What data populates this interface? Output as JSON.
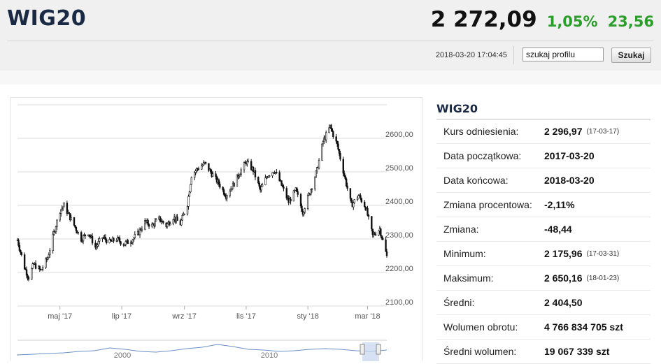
{
  "header": {
    "title": "WIG20",
    "price": "2 272,09",
    "change_pct": "1,05%",
    "change_abs": "23,56",
    "timestamp": "2018-03-20 17:04:45",
    "search_value": "szukaj profilu",
    "search_button": "Szukaj",
    "change_color": "#2a9d2a"
  },
  "info": {
    "title": "WIG20",
    "rows": [
      {
        "label": "Kurs odniesienia:",
        "value": "2 296,97",
        "date": "(17-03-17)"
      },
      {
        "label": "Data początkowa:",
        "value": "2017-03-20",
        "date": ""
      },
      {
        "label": "Data końcowa:",
        "value": "2018-03-20",
        "date": ""
      },
      {
        "label": "Zmiana procentowa:",
        "value": "-2,11%",
        "date": ""
      },
      {
        "label": "Zmiana:",
        "value": "-48,44",
        "date": ""
      },
      {
        "label": "Minimum:",
        "value": "2 175,96",
        "date": "(17-03-31)"
      },
      {
        "label": "Maksimum:",
        "value": "2 650,16",
        "date": "(18-01-23)"
      },
      {
        "label": "Średni:",
        "value": "2 404,50",
        "date": ""
      },
      {
        "label": "Wolumen obrotu:",
        "value": "4 766 834 705 szt",
        "date": ""
      },
      {
        "label": "Średni wolumen:",
        "value": "19 067 339 szt",
        "date": ""
      }
    ]
  },
  "chart_data": {
    "type": "candlestick",
    "x_range": [
      "2017-03-20",
      "2018-03-20"
    ],
    "ylim": [
      2100,
      2700
    ],
    "y_ticks": [
      {
        "value": 2100,
        "label": "2100,00"
      },
      {
        "value": 2200,
        "label": "2200,00"
      },
      {
        "value": 2300,
        "label": "2300,00"
      },
      {
        "value": 2400,
        "label": "2400,00"
      },
      {
        "value": 2500,
        "label": "2500,00"
      },
      {
        "value": 2600,
        "label": "2600,00"
      }
    ],
    "x_ticks": [
      {
        "date": "2017-05-01",
        "label": "maj '17"
      },
      {
        "date": "2017-07-01",
        "label": "lip '17"
      },
      {
        "date": "2017-09-01",
        "label": "wrz '17"
      },
      {
        "date": "2017-11-01",
        "label": "lis '17"
      },
      {
        "date": "2018-01-01",
        "label": "sty '18"
      },
      {
        "date": "2018-03-01",
        "label": "mar '18"
      }
    ],
    "close_series": [
      [
        "2017-03-20",
        2297
      ],
      [
        "2017-03-27",
        2215
      ],
      [
        "2017-03-31",
        2185
      ],
      [
        "2017-04-05",
        2225
      ],
      [
        "2017-04-12",
        2205
      ],
      [
        "2017-04-19",
        2245
      ],
      [
        "2017-04-26",
        2330
      ],
      [
        "2017-05-01",
        2385
      ],
      [
        "2017-05-05",
        2400
      ],
      [
        "2017-05-10",
        2370
      ],
      [
        "2017-05-16",
        2335
      ],
      [
        "2017-05-22",
        2300
      ],
      [
        "2017-05-29",
        2320
      ],
      [
        "2017-06-05",
        2275
      ],
      [
        "2017-06-12",
        2305
      ],
      [
        "2017-06-19",
        2290
      ],
      [
        "2017-06-26",
        2300
      ],
      [
        "2017-07-03",
        2285
      ],
      [
        "2017-07-10",
        2295
      ],
      [
        "2017-07-17",
        2315
      ],
      [
        "2017-07-24",
        2350
      ],
      [
        "2017-07-31",
        2340
      ],
      [
        "2017-08-07",
        2360
      ],
      [
        "2017-08-14",
        2340
      ],
      [
        "2017-08-21",
        2365
      ],
      [
        "2017-08-28",
        2345
      ],
      [
        "2017-09-04",
        2405
      ],
      [
        "2017-09-08",
        2490
      ],
      [
        "2017-09-14",
        2510
      ],
      [
        "2017-09-21",
        2525
      ],
      [
        "2017-09-28",
        2495
      ],
      [
        "2017-10-05",
        2465
      ],
      [
        "2017-10-12",
        2430
      ],
      [
        "2017-10-19",
        2460
      ],
      [
        "2017-10-26",
        2500
      ],
      [
        "2017-11-01",
        2530
      ],
      [
        "2017-11-08",
        2505
      ],
      [
        "2017-11-15",
        2445
      ],
      [
        "2017-11-22",
        2490
      ],
      [
        "2017-11-29",
        2505
      ],
      [
        "2017-12-06",
        2460
      ],
      [
        "2017-12-13",
        2410
      ],
      [
        "2017-12-20",
        2445
      ],
      [
        "2017-12-27",
        2380
      ],
      [
        "2018-01-03",
        2440
      ],
      [
        "2018-01-10",
        2505
      ],
      [
        "2018-01-16",
        2590
      ],
      [
        "2018-01-23",
        2635
      ],
      [
        "2018-01-30",
        2580
      ],
      [
        "2018-02-06",
        2490
      ],
      [
        "2018-02-13",
        2400
      ],
      [
        "2018-02-20",
        2430
      ],
      [
        "2018-02-27",
        2395
      ],
      [
        "2018-03-06",
        2310
      ],
      [
        "2018-03-13",
        2330
      ],
      [
        "2018-03-20",
        2248
      ]
    ],
    "navigator": {
      "labels": [
        "2000",
        "2010"
      ]
    }
  }
}
